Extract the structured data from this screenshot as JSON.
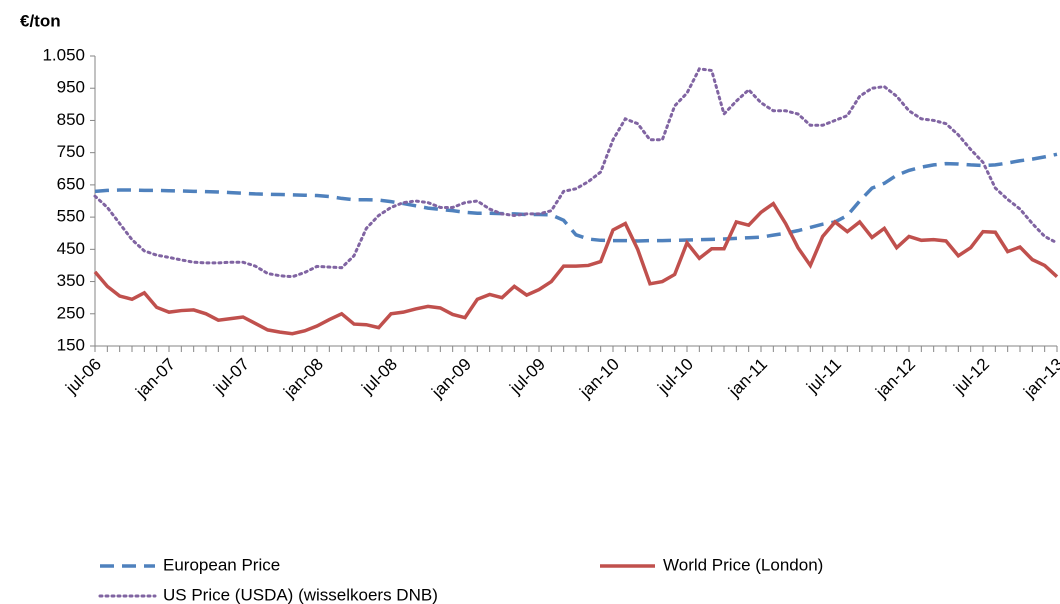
{
  "chart_data": {
    "type": "line",
    "y_label": "€/ton",
    "categories": [
      "jul-06",
      null,
      null,
      null,
      null,
      null,
      "jan-07",
      null,
      null,
      null,
      null,
      null,
      "jul-07",
      null,
      null,
      null,
      null,
      null,
      "jan-08",
      null,
      null,
      null,
      null,
      null,
      "jul-08",
      null,
      null,
      null,
      null,
      null,
      "jan-09",
      null,
      null,
      null,
      null,
      null,
      "jul-09",
      null,
      null,
      null,
      null,
      null,
      "jan-10",
      null,
      null,
      null,
      null,
      null,
      "jul-10",
      null,
      null,
      null,
      null,
      null,
      "jan-11",
      null,
      null,
      null,
      null,
      null,
      "jul-11",
      null,
      null,
      null,
      null,
      null,
      "jan-12",
      null,
      null,
      null,
      null,
      null,
      "jul-12",
      null,
      null,
      null,
      null,
      null,
      "jan-13"
    ],
    "ylim": [
      150,
      1050
    ],
    "yticks": [
      150,
      250,
      350,
      450,
      550,
      650,
      750,
      850,
      950,
      {
        "value": 1050,
        "label": "1.050"
      }
    ],
    "series": [
      {
        "name": "European Price",
        "color": "#4f81bd",
        "style": "dashed",
        "values": [
          630,
          633,
          634,
          634,
          633,
          633,
          632,
          631,
          630,
          629,
          628,
          626,
          624,
          622,
          621,
          620,
          619,
          618,
          617,
          614,
          608,
          604,
          604,
          603,
          598,
          592,
          585,
          578,
          574,
          570,
          565,
          562,
          562,
          561,
          560,
          558,
          558,
          557,
          540,
          495,
          482,
          478,
          477,
          477,
          476,
          477,
          477,
          478,
          479,
          480,
          481,
          482,
          484,
          486,
          488,
          494,
          500,
          508,
          518,
          528,
          535,
          555,
          600,
          640,
          655,
          680,
          695,
          705,
          712,
          716,
          715,
          712,
          710,
          712,
          718,
          725,
          730,
          737,
          745
        ]
      },
      {
        "name": "World Price (London)",
        "color": "#c0504d",
        "style": "solid",
        "values": [
          380,
          335,
          305,
          295,
          315,
          270,
          255,
          260,
          262,
          250,
          230,
          235,
          240,
          220,
          200,
          193,
          188,
          197,
          212,
          232,
          250,
          218,
          216,
          207,
          250,
          255,
          265,
          273,
          268,
          248,
          238,
          295,
          310,
          300,
          335,
          308,
          325,
          350,
          398,
          398,
          400,
          412,
          510,
          530,
          450,
          343,
          350,
          372,
          470,
          422,
          452,
          452,
          535,
          525,
          565,
          592,
          530,
          455,
          400,
          490,
          535,
          505,
          535,
          487,
          515,
          455,
          490,
          478,
          480,
          476,
          430,
          455,
          505,
          503,
          443,
          457,
          418,
          400,
          365
        ]
      },
      {
        "name": "US Price (USDA) (wisselkoers DNB)",
        "color": "#8064a2",
        "style": "dotted",
        "values": [
          615,
          580,
          530,
          480,
          445,
          432,
          425,
          417,
          410,
          408,
          408,
          410,
          410,
          398,
          375,
          368,
          365,
          378,
          397,
          395,
          393,
          430,
          515,
          555,
          580,
          595,
          600,
          595,
          580,
          580,
          595,
          600,
          575,
          560,
          555,
          560,
          560,
          570,
          630,
          638,
          660,
          690,
          790,
          855,
          840,
          790,
          790,
          895,
          935,
          1010,
          1005,
          870,
          910,
          945,
          905,
          880,
          880,
          870,
          835,
          835,
          850,
          865,
          925,
          950,
          955,
          925,
          880,
          855,
          850,
          840,
          805,
          760,
          720,
          640,
          605,
          575,
          530,
          490,
          470
        ]
      }
    ]
  }
}
